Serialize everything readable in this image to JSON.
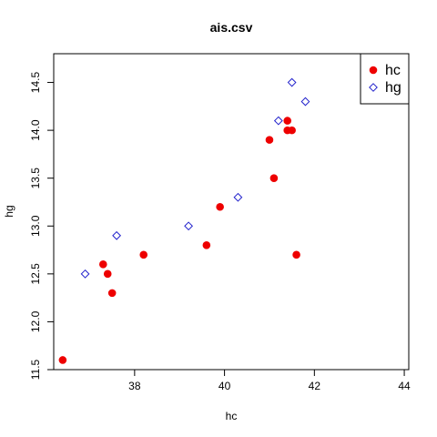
{
  "chart_data": {
    "type": "scatter",
    "title": "ais.csv",
    "xlabel": "hc",
    "ylabel": "hg",
    "xlim": [
      36.2,
      44.1
    ],
    "ylim": [
      11.5,
      14.8
    ],
    "xticks": [
      38,
      40,
      42,
      44
    ],
    "yticks": [
      11.5,
      12.0,
      12.5,
      13.0,
      13.5,
      14.0,
      14.5
    ],
    "xtick_labels": [
      "38",
      "40",
      "42",
      "44"
    ],
    "ytick_labels": [
      "11.5",
      "12.0",
      "12.5",
      "13.0",
      "13.5",
      "14.0",
      "14.5"
    ],
    "legend_position": "top-right",
    "series": [
      {
        "name": "hc",
        "marker": "filled-circle",
        "color": "#ee0000",
        "points": [
          {
            "x": 36.4,
            "y": 11.6
          },
          {
            "x": 37.3,
            "y": 12.6
          },
          {
            "x": 37.4,
            "y": 12.5
          },
          {
            "x": 37.5,
            "y": 12.3
          },
          {
            "x": 38.2,
            "y": 12.7
          },
          {
            "x": 39.6,
            "y": 12.8
          },
          {
            "x": 39.9,
            "y": 13.2
          },
          {
            "x": 41.0,
            "y": 13.9
          },
          {
            "x": 41.1,
            "y": 13.5
          },
          {
            "x": 41.4,
            "y": 14.1
          },
          {
            "x": 41.4,
            "y": 14.0
          },
          {
            "x": 41.5,
            "y": 14.0
          },
          {
            "x": 41.6,
            "y": 12.7
          }
        ]
      },
      {
        "name": "hg",
        "marker": "open-diamond",
        "color": "#2222cc",
        "points": [
          {
            "x": 36.9,
            "y": 12.5
          },
          {
            "x": 37.6,
            "y": 12.9
          },
          {
            "x": 39.2,
            "y": 13.0
          },
          {
            "x": 40.3,
            "y": 13.3
          },
          {
            "x": 41.2,
            "y": 14.1
          },
          {
            "x": 41.5,
            "y": 14.5
          },
          {
            "x": 41.8,
            "y": 14.3
          }
        ]
      }
    ]
  }
}
